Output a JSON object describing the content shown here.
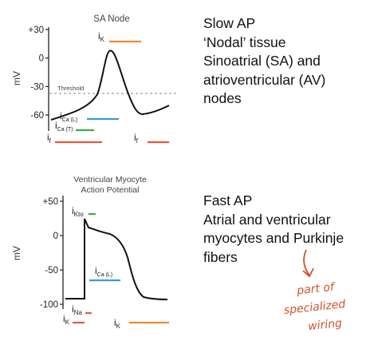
{
  "slow_panel": {
    "title": "SA Node",
    "ylabel": "mV",
    "yticks": [
      {
        "value": 30,
        "label": "+30"
      },
      {
        "value": 0,
        "label": "0"
      },
      {
        "value": -30,
        "label": "-30"
      },
      {
        "value": -60,
        "label": "-60"
      }
    ],
    "threshold_label": "Threshold",
    "threshold_mV": -40,
    "currents": [
      {
        "main": "i",
        "sub": "K",
        "color": "#f08a30"
      },
      {
        "main": "i",
        "sub": "Ca (L)",
        "color": "#3a9bd8"
      },
      {
        "main": "i",
        "sub": "Ca (T)",
        "color": "#3aae4a"
      },
      {
        "main": "i",
        "sub": "f",
        "color": "#e8573c"
      },
      {
        "main": "i",
        "sub": "f",
        "color": "#e8573c"
      }
    ]
  },
  "fast_panel": {
    "title_line1": "Ventricular Myocyte",
    "title_line2": "Action Potential",
    "ylabel": "mV",
    "yticks": [
      {
        "value": 50,
        "label": "+50"
      },
      {
        "value": 0,
        "label": "0"
      },
      {
        "value": -50,
        "label": "-50"
      },
      {
        "value": -100,
        "label": "-100"
      }
    ],
    "currents": [
      {
        "main": "i",
        "sub": "Kto",
        "color": "#3aae4a"
      },
      {
        "main": "i",
        "sub": "Ca (L)",
        "color": "#3a9bd8"
      },
      {
        "main": "i",
        "sub": "Na",
        "color": "#e8573c"
      },
      {
        "main": "i",
        "sub": "K",
        "color": "#e8573c"
      },
      {
        "main": "i",
        "sub": "K",
        "color": "#f08a30"
      }
    ]
  },
  "text": {
    "slow_lines": [
      "Slow AP",
      "‘Nodal’ tissue",
      "Sinoatrial (SA) and",
      "atrioventricular (AV)",
      "nodes"
    ],
    "fast_lines": [
      "Fast AP",
      "Atrial and ventricular",
      "myocytes and Purkinje",
      "fibers"
    ]
  },
  "annotation": {
    "lines": [
      "part of",
      "specialized",
      "wiring"
    ],
    "color": "#d2532a"
  }
}
